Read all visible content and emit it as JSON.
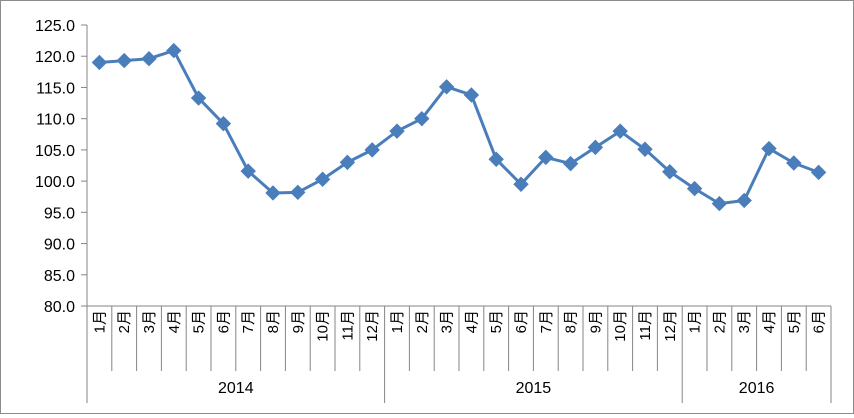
{
  "chart_data": {
    "type": "line",
    "title": "",
    "xlabel": "",
    "ylabel": "",
    "ylim": [
      80,
      125
    ],
    "yticks": [
      "80.0",
      "85.0",
      "90.0",
      "95.0",
      "100.0",
      "105.0",
      "110.0",
      "115.0",
      "120.0",
      "125.0"
    ],
    "grid": false,
    "legend": "none",
    "line_color": "#4A7EBB",
    "marker": "diamond",
    "groups": [
      {
        "label": "2014",
        "months": [
          "1月",
          "2月",
          "3月",
          "4月",
          "5月",
          "6月",
          "7月",
          "8月",
          "9月",
          "10月",
          "11月",
          "12月"
        ]
      },
      {
        "label": "2015",
        "months": [
          "1月",
          "2月",
          "3月",
          "4月",
          "5月",
          "6月",
          "7月",
          "8月",
          "9月",
          "10月",
          "11月",
          "12月"
        ]
      },
      {
        "label": "2016",
        "months": [
          "1月",
          "2月",
          "3月",
          "4月",
          "5月",
          "6月"
        ]
      }
    ],
    "series": [
      {
        "values": [
          119.0,
          119.3,
          119.6,
          120.9,
          113.3,
          109.2,
          101.6,
          98.1,
          98.2,
          100.3,
          103.0,
          105.0,
          108.0,
          110.0,
          115.1,
          113.8,
          103.5,
          99.5,
          103.8,
          102.8,
          105.4,
          108.0,
          105.1,
          101.5,
          98.8,
          96.4,
          96.9,
          105.2,
          102.9,
          101.4
        ]
      }
    ]
  }
}
